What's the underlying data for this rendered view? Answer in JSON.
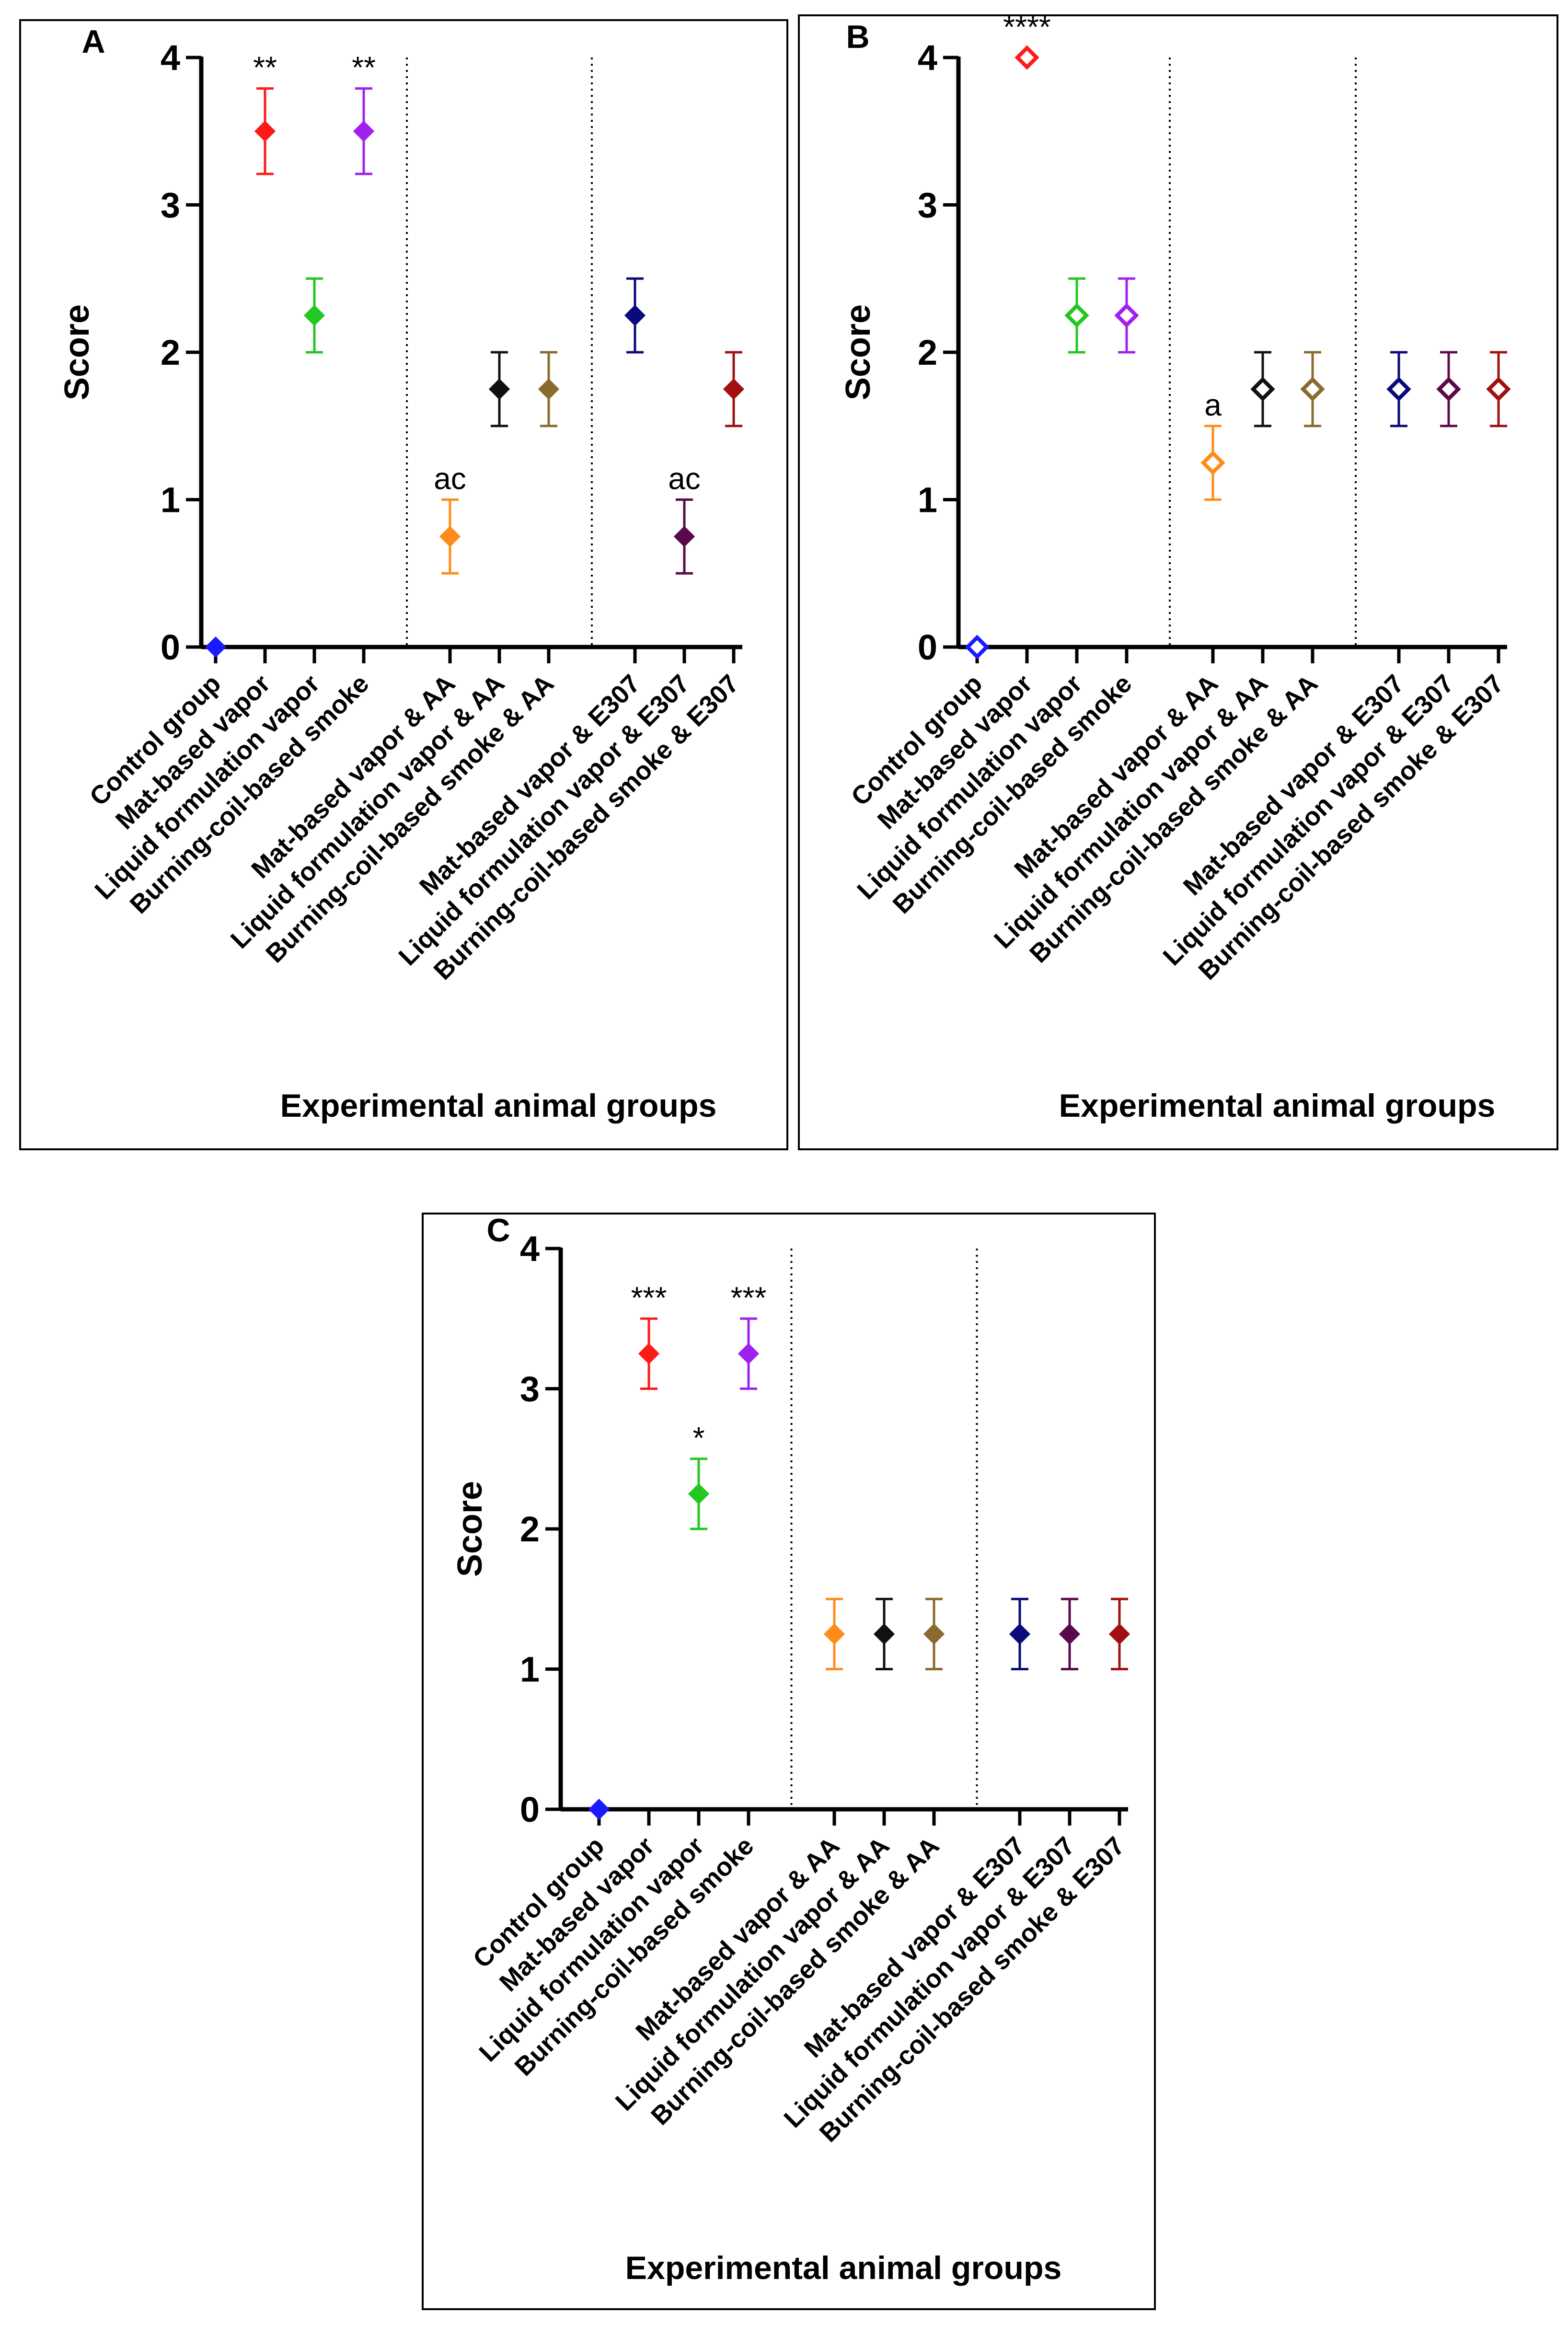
{
  "colors": {
    "Control group": "#1a1aff",
    "Mat-based vapor": "#ff1a1a",
    "Liquid formulation vapor": "#22c722",
    "Burning-coil-based smoke": "#a020f0",
    "Mat-based vapor & AA": "#ff8c1a",
    "Liquid formulation vapor & AA": "#111111",
    "Burning-coil-based smoke & AA": "#8b6a2e",
    "Mat-based vapor & E307": "#0a0a7a",
    "Liquid formulation vapor & E307": "#5a0a4a",
    "Burning-coil-based smoke & E307": "#a01010"
  },
  "chart_data": [
    {
      "type": "scatter",
      "panel": "A",
      "ylabel": "Score",
      "xlabel": "Experimental animal groups",
      "ylim": [
        0,
        4
      ],
      "yticks": [
        "0",
        "1",
        "2",
        "3",
        "4"
      ],
      "categories": [
        "Control group",
        "Mat-based vapor",
        "Liquid formulation vapor",
        "Burning-coil-based smoke",
        "Mat-based vapor & AA",
        "Liquid formulation vapor & AA",
        "Burning-coil-based smoke & AA",
        "Mat-based vapor & E307",
        "Liquid formulation vapor & E307",
        "Burning-coil-based smoke & E307"
      ],
      "groups": [
        [
          0,
          1,
          2,
          3
        ],
        [
          4,
          5,
          6
        ],
        [
          7,
          8,
          9
        ]
      ],
      "values": [
        0,
        3.5,
        2.25,
        3.5,
        0.75,
        1.75,
        1.75,
        2.25,
        0.75,
        1.75
      ],
      "errors": [
        0,
        0.29,
        0.25,
        0.29,
        0.25,
        0.25,
        0.25,
        0.25,
        0.25,
        0.25
      ],
      "hollow": [
        false,
        false,
        false,
        false,
        false,
        false,
        false,
        false,
        false,
        false
      ],
      "annotations": [
        "",
        "**",
        "",
        "**",
        "ac",
        "",
        "",
        "",
        "ac",
        ""
      ]
    },
    {
      "type": "scatter",
      "panel": "B",
      "ylabel": "Score",
      "xlabel": "Experimental animal groups",
      "ylim": [
        0,
        4
      ],
      "yticks": [
        "0",
        "1",
        "2",
        "3",
        "4"
      ],
      "categories": [
        "Control group",
        "Mat-based vapor",
        "Liquid formulation vapor",
        "Burning-coil-based smoke",
        "Mat-based vapor & AA",
        "Liquid formulation vapor & AA",
        "Burning-coil-based smoke & AA",
        "Mat-based vapor & E307",
        "Liquid formulation vapor & E307",
        "Burning-coil-based smoke & E307"
      ],
      "groups": [
        [
          0,
          1,
          2,
          3
        ],
        [
          4,
          5,
          6
        ],
        [
          7,
          8,
          9
        ]
      ],
      "values": [
        0,
        4,
        2.25,
        2.25,
        1.25,
        1.75,
        1.75,
        1.75,
        1.75,
        1.75
      ],
      "errors": [
        0,
        0,
        0.25,
        0.25,
        0.25,
        0.25,
        0.25,
        0.25,
        0.25,
        0.25
      ],
      "hollow": [
        true,
        true,
        true,
        true,
        true,
        true,
        true,
        true,
        true,
        true
      ],
      "annotations": [
        "",
        "****",
        "",
        "",
        "a",
        "",
        "",
        "",
        "",
        ""
      ]
    },
    {
      "type": "scatter",
      "panel": "C",
      "ylabel": "Score",
      "xlabel": "Experimental animal groups",
      "ylim": [
        0,
        4
      ],
      "yticks": [
        "0",
        "1",
        "2",
        "3",
        "4"
      ],
      "categories": [
        "Control group",
        "Mat-based vapor",
        "Liquid formulation vapor",
        "Burning-coil-based smoke",
        "Mat-based vapor & AA",
        "Liquid formulation vapor & AA",
        "Burning-coil-based smoke & AA",
        "Mat-based vapor & E307",
        "Liquid formulation vapor & E307",
        "Burning-coil-based smoke & E307"
      ],
      "groups": [
        [
          0,
          1,
          2,
          3
        ],
        [
          4,
          5,
          6
        ],
        [
          7,
          8,
          9
        ]
      ],
      "values": [
        0,
        3.25,
        2.25,
        3.25,
        1.25,
        1.25,
        1.25,
        1.25,
        1.25,
        1.25
      ],
      "errors": [
        0,
        0.25,
        0.25,
        0.25,
        0.25,
        0.25,
        0.25,
        0.25,
        0.25,
        0.25
      ],
      "hollow": [
        false,
        false,
        false,
        false,
        false,
        false,
        false,
        false,
        false,
        false
      ],
      "annotations": [
        "",
        "***",
        "*",
        "***",
        "",
        "",
        "",
        "",
        "",
        ""
      ]
    }
  ]
}
